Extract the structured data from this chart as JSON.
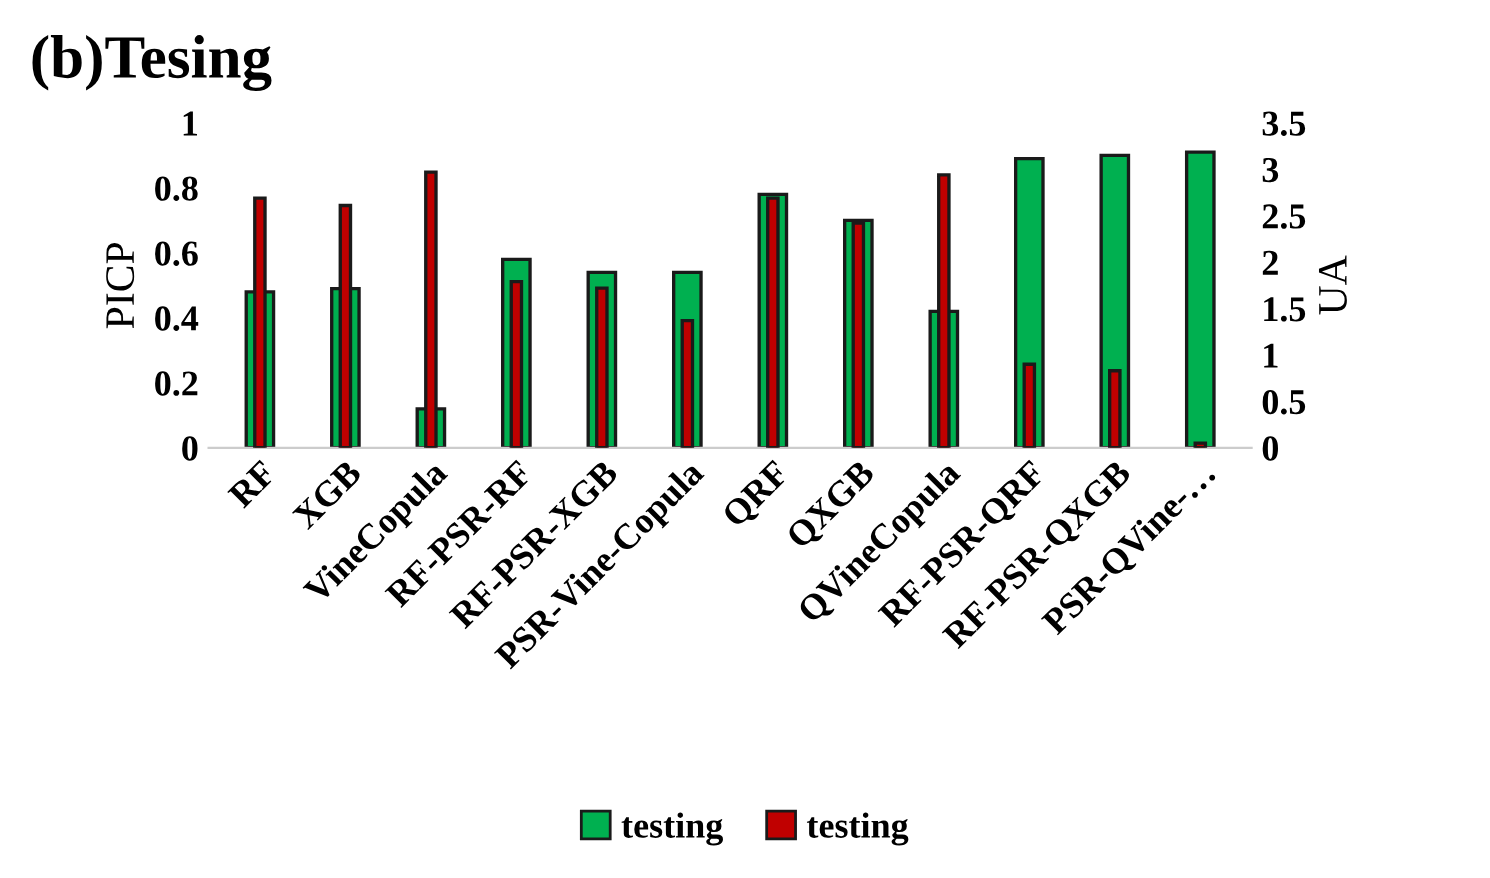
{
  "chart_data": {
    "type": "bar",
    "title": "(b)Tesing",
    "ylabel": "PICP",
    "y2label": "UA",
    "categories": [
      "RF",
      "XGB",
      "VineCopula",
      "RF-PSR-RF",
      "RF-PSR-XGB",
      "PSR-Vine-Copula",
      "QRF",
      "QXGB",
      "QVineCopula",
      "RF-PSR-QRF",
      "RF-PSR-QXGB",
      "PSR-QVine-…"
    ],
    "series": [
      {
        "name": "testing",
        "color": "#00b050",
        "values": [
          0.48,
          0.49,
          0.12,
          0.58,
          0.54,
          0.54,
          0.78,
          0.7,
          0.42,
          0.89,
          0.9,
          0.91
        ]
      },
      {
        "name": "testing",
        "color": "#c00000",
        "axis": "y2",
        "values": [
          2.69,
          2.61,
          2.97,
          1.79,
          1.72,
          1.37,
          2.69,
          2.42,
          2.94,
          0.9,
          0.83,
          0.05
        ]
      }
    ],
    "ylim": [
      0,
      1
    ],
    "yticks": [
      0,
      0.2,
      0.4,
      0.6,
      0.8,
      1
    ],
    "y2lim": [
      0,
      3.5
    ],
    "y2ticks": [
      0,
      0.5,
      1,
      1.5,
      2,
      2.5,
      3,
      3.5
    ],
    "grid": false,
    "legend": "bottom"
  }
}
